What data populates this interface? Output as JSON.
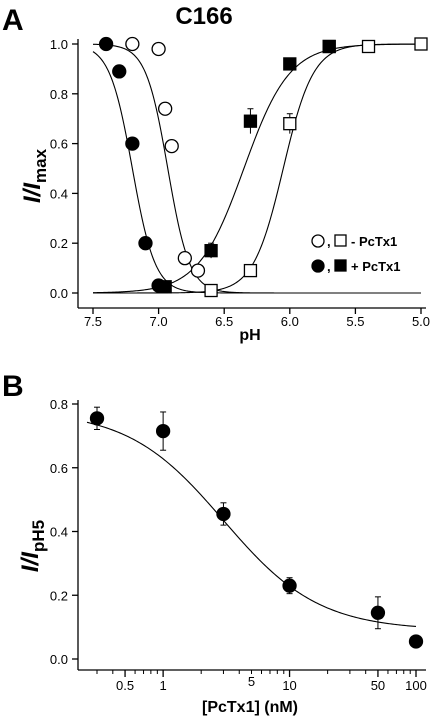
{
  "chart_data": [
    {
      "panel": "A",
      "type": "scatter",
      "title": "C166",
      "xlabel": "pH",
      "ylabel_main": "I/I",
      "ylabel_sub": "max",
      "xlim": [
        7.5,
        5.0
      ],
      "xreversed": true,
      "ylim": [
        0.0,
        1.0
      ],
      "xticks": [
        7.5,
        7.0,
        6.5,
        6.0,
        5.5,
        5.0
      ],
      "xtick_labels": [
        "7.5",
        "7.0",
        "6.5",
        "6.0",
        "5.5",
        "5.0"
      ],
      "yticks": [
        0.0,
        0.2,
        0.4,
        0.6,
        0.8,
        1.0
      ],
      "ytick_labels": [
        "0.0",
        "0.2",
        "0.4",
        "0.6",
        "0.8",
        "1.0"
      ],
      "grid": false,
      "legend_position": "right",
      "series": [
        {
          "name": "- PcTx1",
          "markers": [
            {
              "shape": "circle",
              "fill": "open",
              "x": [
                7.2,
                7.0,
                6.95,
                6.9,
                6.8,
                6.7
              ],
              "y": [
                1.0,
                0.98,
                0.74,
                0.59,
                0.14,
                0.09
              ]
            },
            {
              "shape": "square",
              "fill": "open",
              "x": [
                6.6,
                6.3,
                6.0,
                5.7,
                5.4,
                5.0
              ],
              "y": [
                0.01,
                0.09,
                0.68,
                0.99,
                0.99,
                1.0
              ],
              "yerr": [
                0,
                0,
                0.04,
                0,
                0,
                0
              ]
            }
          ]
        },
        {
          "name": "+ PcTx1",
          "markers": [
            {
              "shape": "circle",
              "fill": "filled",
              "x": [
                7.4,
                7.3,
                7.2,
                7.1,
                7.0
              ],
              "y": [
                1.0,
                0.89,
                0.6,
                0.2,
                0.03
              ]
            },
            {
              "shape": "square",
              "fill": "filled",
              "x": [
                6.95,
                6.6,
                6.3,
                6.0,
                5.7
              ],
              "y": [
                0.025,
                0.17,
                0.69,
                0.92,
                0.99
              ],
              "yerr": [
                0,
                0.03,
                0.05,
                0.02,
                0.02
              ]
            }
          ]
        }
      ],
      "fit_curves": [
        {
          "shape": "descending",
          "pH50": 6.93,
          "n": 5.2
        },
        {
          "shape": "descending",
          "pH50": 7.2,
          "n": 5.0
        },
        {
          "shape": "ascending",
          "pH50": 6.35,
          "n": 2.5
        },
        {
          "shape": "ascending",
          "pH50": 6.05,
          "n": 3.8
        }
      ],
      "legend": [
        {
          "symbols": [
            "open-circle",
            "open-square"
          ],
          "separator": ",",
          "label": "- PcTx1"
        },
        {
          "symbols": [
            "filled-circle",
            "filled-square"
          ],
          "separator": ",",
          "label": "+ PcTx1"
        }
      ]
    },
    {
      "panel": "B",
      "type": "scatter",
      "xlabel": "[PcTx1] (nM)",
      "ylabel_main": "I/I",
      "ylabel_sub": "pH5",
      "xscale": "log",
      "xlim": [
        0.25,
        100
      ],
      "ylim": [
        0.0,
        0.8
      ],
      "xticks": [
        0.5,
        1,
        10,
        50,
        100
      ],
      "xtick_labels": [
        "0.5",
        "1",
        "10",
        "50",
        "100"
      ],
      "xminor_ticks": [
        0.3,
        0.4,
        0.6,
        0.7,
        0.8,
        0.9,
        2,
        3,
        4,
        5,
        6,
        7,
        8,
        9,
        20,
        30,
        40,
        60,
        70,
        80,
        90
      ],
      "xmid_labels": [
        {
          "x": 5,
          "label": "5"
        }
      ],
      "yticks": [
        0.0,
        0.2,
        0.4,
        0.6,
        0.8
      ],
      "ytick_labels": [
        "0.0",
        "0.2",
        "0.4",
        "0.6",
        "0.8"
      ],
      "grid": false,
      "series": [
        {
          "x": [
            0.3,
            1,
            3,
            10,
            50,
            100
          ],
          "y": [
            0.755,
            0.715,
            0.455,
            0.23,
            0.145,
            0.055
          ],
          "yerr": [
            0.035,
            0.06,
            0.035,
            0.025,
            0.05,
            0.0
          ]
        }
      ],
      "fit_curve": {
        "top": 0.78,
        "bottom": 0.09,
        "ic50": 3.0,
        "hill": 1.15
      }
    }
  ],
  "labels": {
    "panel_a": "A",
    "panel_b": "B",
    "legend_sep": ","
  }
}
